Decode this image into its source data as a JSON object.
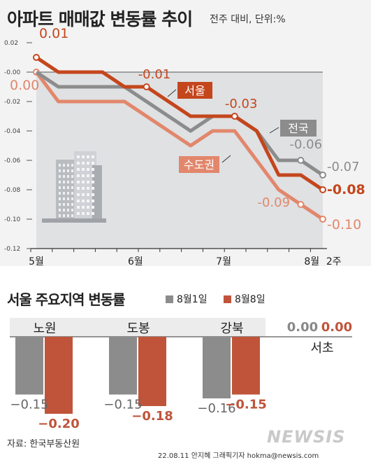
{
  "header": {
    "title": "아파트 매매값 변동률 추이",
    "subtitle": "전주 대비, 단위:%"
  },
  "colors": {
    "seoul": "#c4461c",
    "nationwide": "#8c8c8c",
    "capital": "#e2876c",
    "bar_prev": "#8c8c8c",
    "bar_curr": "#c0543a"
  },
  "chart_data": [
    {
      "type": "line",
      "title": "아파트 매매값 변동률 추이",
      "subtitle": "전주 대비, 단위:%",
      "ylim": [
        -0.12,
        0.02
      ],
      "yticks": [
        "0.02",
        "-0.00",
        "-0.02",
        "-0.04",
        "-0.06",
        "-0.08",
        "-0.10",
        "-0.12"
      ],
      "yticks_values": [
        0.02,
        0.0,
        -0.02,
        -0.04,
        -0.06,
        -0.08,
        -0.1,
        -0.12
      ],
      "xtick_labels": [
        "5월",
        "6월",
        "7월",
        "8월",
        "2주"
      ],
      "xtick_index": [
        0,
        4.5,
        8.5,
        12.5,
        13.5
      ],
      "x_count": 14,
      "series": [
        {
          "name": "서울",
          "values": [
            0.01,
            0.0,
            0.0,
            0.0,
            -0.01,
            -0.01,
            -0.02,
            -0.03,
            -0.03,
            -0.03,
            -0.04,
            -0.07,
            -0.07,
            -0.08
          ],
          "labels": [
            {
              "i": 0,
              "text": "0.01"
            },
            {
              "i": 5,
              "text": "-0.01"
            },
            {
              "i": 9,
              "text": "-0.03"
            },
            {
              "i": 13,
              "text": "-0.08"
            }
          ]
        },
        {
          "name": "전국",
          "values": [
            0.0,
            -0.01,
            -0.01,
            -0.01,
            -0.01,
            -0.02,
            -0.03,
            -0.04,
            -0.03,
            -0.03,
            -0.04,
            -0.06,
            -0.06,
            -0.07
          ],
          "labels": [
            {
              "i": 12,
              "text": "-0.06"
            },
            {
              "i": 13,
              "text": "-0.07"
            }
          ]
        },
        {
          "name": "수도권",
          "values": [
            0.0,
            -0.02,
            -0.02,
            -0.02,
            -0.02,
            -0.03,
            -0.04,
            -0.05,
            -0.04,
            -0.04,
            -0.06,
            -0.08,
            -0.09,
            -0.1
          ],
          "labels": [
            {
              "i": 0,
              "text": "0.00"
            },
            {
              "i": 12,
              "text": "-0.09"
            },
            {
              "i": 13,
              "text": "-0.10"
            }
          ]
        }
      ]
    },
    {
      "type": "bar",
      "title": "서울 주요지역 변동률",
      "categories": [
        "노원",
        "도봉",
        "강북",
        "서초"
      ],
      "series": [
        {
          "name": "8월1일",
          "values": [
            -0.15,
            -0.15,
            -0.16,
            0.0
          ],
          "labels": [
            "−0.15",
            "−0.15",
            "−0.16",
            "0.00"
          ]
        },
        {
          "name": "8월8일",
          "values": [
            -0.2,
            -0.18,
            -0.15,
            0.0
          ],
          "labels": [
            "−0.20",
            "−0.18",
            "−0.15",
            "0.00"
          ]
        }
      ],
      "ylim": [
        -0.2,
        0.0
      ]
    }
  ],
  "footer": {
    "source": "자료: 한국부동산원",
    "credit": "22.08.11 안지혜 그래픽기자 hokma@newsis.com",
    "watermark": "NEWSIS"
  }
}
